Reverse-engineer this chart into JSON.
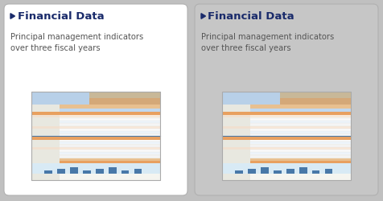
{
  "card1_bg": "#ffffff",
  "card2_bg": "#c6c6c6",
  "outer_bg": "#c0c0c0",
  "title_color": "#1a2b6b",
  "title_text": "Financial Data",
  "subtitle_text": "Principal management indicators\nover three fiscal years",
  "subtitle_color": "#555555",
  "card_border_color": "#b0b0b0",
  "title_fontsize": 9.5,
  "subtitle_fontsize": 7.2,
  "thumb_img_top_color": "#a8c8e8",
  "thumb_header_orange": "#e8956e",
  "thumb_row_orange": "#f5d8c0",
  "thumb_row_white": "#f8f8f8",
  "thumb_row_blue": "#ddeeff",
  "thumb_border": "#aaaaaa",
  "thumb_bg": "#f5f5f0",
  "thumb_left_col": "#d8d8d8",
  "thumb_orange_bar": "#e8a060",
  "thumb_blue_bar": "#4878a8",
  "thumb_bottom_orange": "#e8956e",
  "thumb_bottom_blue": "#aac8e0"
}
